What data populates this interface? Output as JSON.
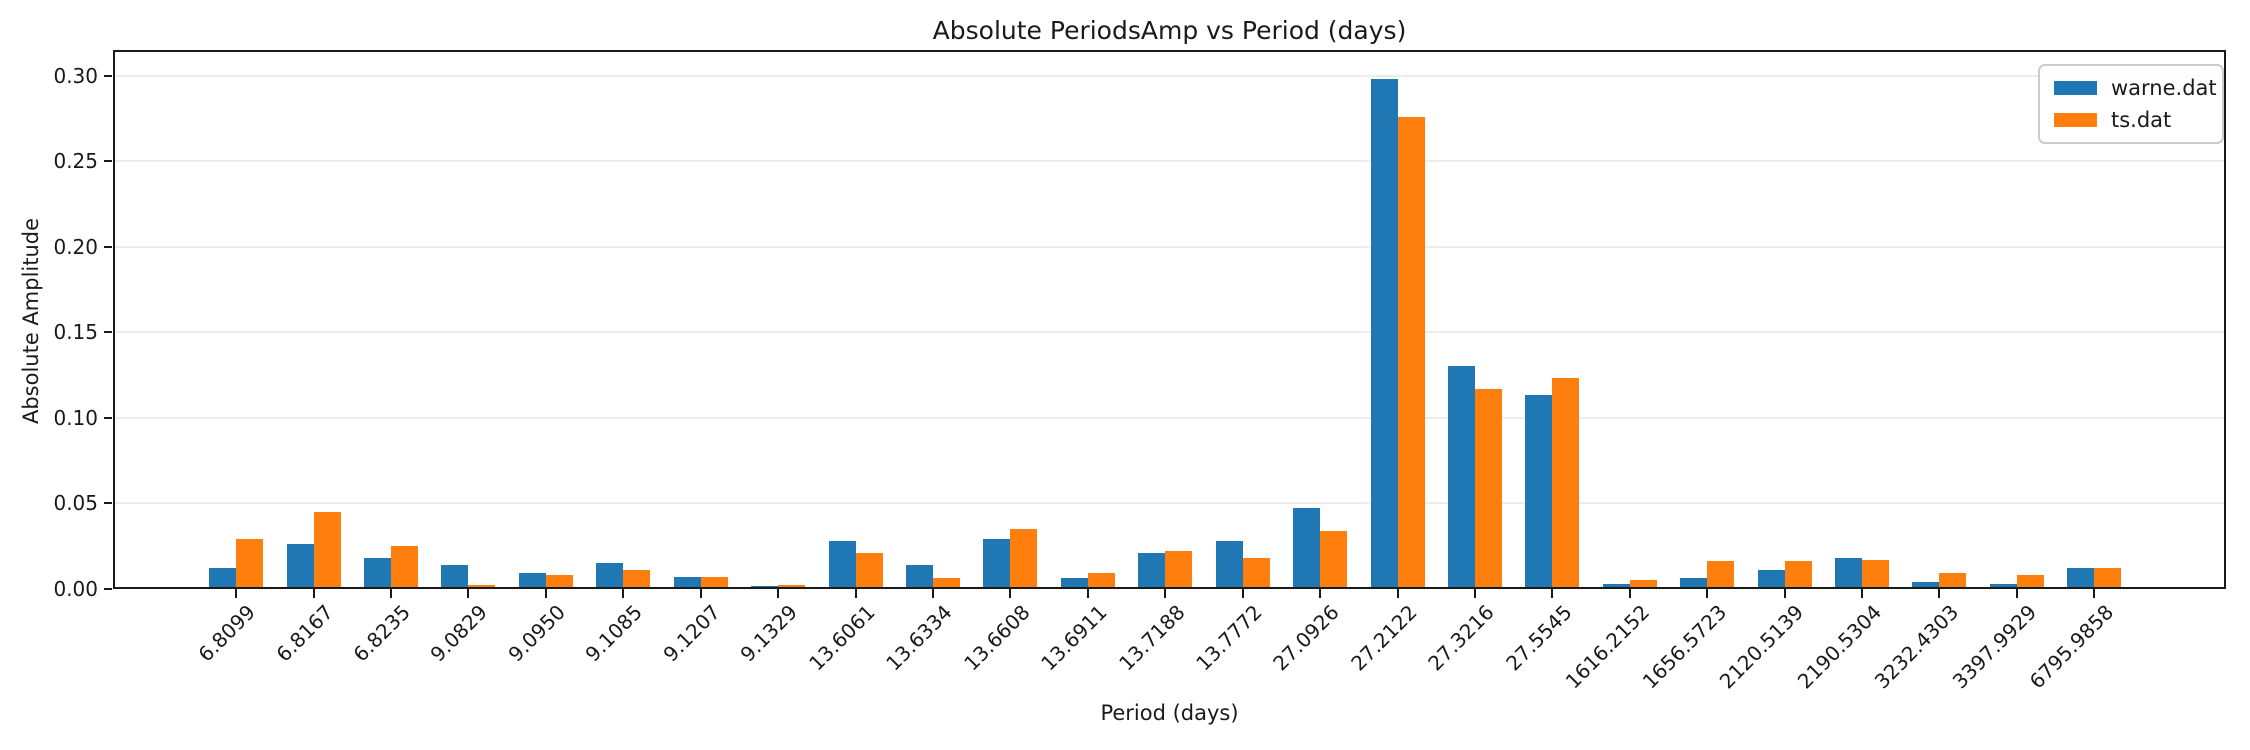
{
  "chart_data": {
    "type": "bar",
    "title": "Absolute PeriodsAmp vs Period (days)",
    "xlabel": "Period (days)",
    "ylabel": "Absolute Amplitude",
    "categories": [
      "6.8099",
      "6.8167",
      "6.8235",
      "9.0829",
      "9.0950",
      "9.1085",
      "9.1207",
      "9.1329",
      "13.6061",
      "13.6334",
      "13.6608",
      "13.6911",
      "13.7188",
      "13.7772",
      "27.0926",
      "27.2122",
      "27.3216",
      "27.5545",
      "1616.2152",
      "1656.5723",
      "2120.5139",
      "2190.5304",
      "3232.4303",
      "3397.9929",
      "6795.9858"
    ],
    "series": [
      {
        "name": "warne.dat",
        "color": "#1f77b4",
        "values": [
          0.011,
          0.025,
          0.017,
          0.013,
          0.008,
          0.014,
          0.006,
          0.0005,
          0.027,
          0.013,
          0.028,
          0.005,
          0.02,
          0.027,
          0.046,
          0.297,
          0.129,
          0.112,
          0.002,
          0.005,
          0.01,
          0.017,
          0.003,
          0.002,
          0.011
        ]
      },
      {
        "name": "ts.dat",
        "color": "#ff7f0e",
        "values": [
          0.028,
          0.044,
          0.024,
          0.001,
          0.007,
          0.01,
          0.006,
          0.001,
          0.02,
          0.005,
          0.034,
          0.008,
          0.021,
          0.017,
          0.033,
          0.275,
          0.116,
          0.122,
          0.004,
          0.015,
          0.015,
          0.016,
          0.008,
          0.007,
          0.011
        ]
      }
    ],
    "ylim": [
      0,
      0.3152
    ],
    "yticks": [
      "0.00",
      "0.05",
      "0.10",
      "0.15",
      "0.20",
      "0.25",
      "0.30"
    ],
    "xtick_rotation": 45,
    "grid": true,
    "legend_position": "upper right"
  },
  "colors": {
    "warne": "#1f77b4",
    "ts": "#ff7f0e",
    "grid": "#ececec",
    "spine": "#1a1a1a",
    "legend_border": "#cccccc"
  }
}
